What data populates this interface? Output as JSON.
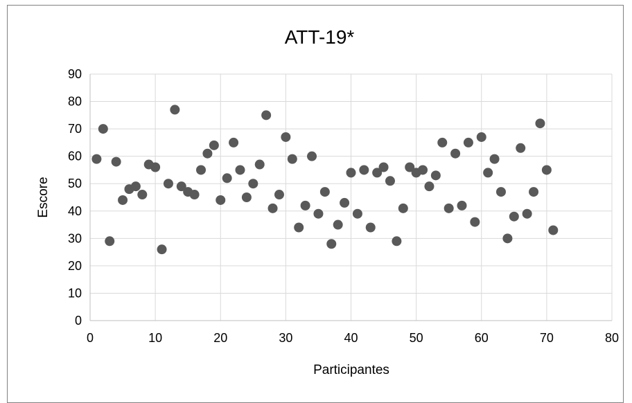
{
  "chart_data": {
    "type": "scatter",
    "title": "ATT-19*",
    "xlabel": "Participantes",
    "ylabel": "Escore",
    "xlim": [
      0,
      80
    ],
    "ylim": [
      0,
      90
    ],
    "xticks": [
      "0",
      "10",
      "20",
      "30",
      "40",
      "50",
      "60",
      "70",
      "80"
    ],
    "yticks": [
      "0",
      "10",
      "20",
      "30",
      "40",
      "50",
      "60",
      "70",
      "80",
      "90"
    ],
    "grid": true,
    "legend": "none",
    "marker_color": "#595959",
    "x": [
      1,
      2,
      3,
      4,
      5,
      6,
      7,
      8,
      9,
      10,
      11,
      12,
      13,
      14,
      15,
      16,
      17,
      18,
      19,
      20,
      21,
      22,
      23,
      24,
      25,
      26,
      27,
      28,
      29,
      30,
      31,
      32,
      33,
      34,
      35,
      36,
      37,
      38,
      39,
      40,
      41,
      42,
      43,
      44,
      45,
      46,
      47,
      48,
      49,
      50,
      51,
      52,
      53,
      54,
      55,
      56,
      57,
      58,
      59,
      60,
      61,
      62,
      63,
      64,
      65,
      66,
      67,
      68,
      69,
      70,
      71
    ],
    "y": [
      59,
      70,
      29,
      58,
      44,
      48,
      49,
      46,
      57,
      56,
      26,
      50,
      77,
      49,
      47,
      46,
      55,
      61,
      64,
      44,
      52,
      65,
      55,
      45,
      50,
      57,
      75,
      41,
      46,
      67,
      59,
      34,
      42,
      60,
      39,
      47,
      28,
      35,
      43,
      54,
      39,
      55,
      34,
      54,
      56,
      51,
      29,
      41,
      56,
      54,
      55,
      49,
      53,
      65,
      41,
      61,
      42,
      65,
      36,
      67,
      54,
      59,
      47,
      30,
      38,
      63,
      39,
      47,
      72,
      55,
      33
    ]
  }
}
